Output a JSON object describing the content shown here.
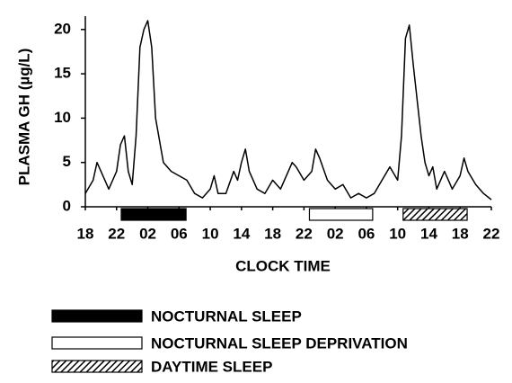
{
  "chart_data": {
    "type": "line",
    "y_label": "PLASMA GH (µg/L)",
    "x_label": "CLOCK TIME",
    "color": "#000000",
    "x": [
      0,
      1,
      1.5,
      2,
      3,
      4,
      4.5,
      5,
      5.5,
      6,
      6.5,
      7,
      7.5,
      8,
      8.5,
      9,
      10,
      11,
      12,
      13,
      14,
      15,
      16,
      16.5,
      17,
      18,
      19,
      19.5,
      20,
      20.5,
      21,
      22,
      23,
      24,
      25,
      26,
      26.5,
      27,
      28,
      29,
      29.5,
      30,
      31,
      32,
      33,
      34,
      35,
      36,
      37,
      38,
      39,
      40,
      40.5,
      41,
      41.5,
      42,
      43,
      43.5,
      44,
      44.5,
      45,
      46,
      46.5,
      47,
      48,
      48.5,
      49,
      50,
      51,
      52
    ],
    "values": [
      1.5,
      3,
      5,
      4,
      2,
      4,
      7,
      8,
      4,
      2.5,
      8,
      18,
      20,
      21,
      18,
      10,
      5,
      4,
      3.5,
      3,
      1.5,
      1,
      2,
      3.5,
      1.5,
      1.5,
      4,
      3,
      5,
      6.5,
      4,
      2,
      1.5,
      3,
      2,
      4,
      5,
      4.5,
      3,
      4,
      6.5,
      5.5,
      3,
      2,
      2.5,
      1,
      1.5,
      1,
      1.5,
      3,
      4.5,
      3,
      8,
      19,
      20.5,
      16,
      8,
      5,
      3.5,
      4.5,
      2,
      4,
      3,
      2,
      3.5,
      5.5,
      4,
      2.5,
      1.5,
      0.8
    ],
    "xlim": [
      0,
      52
    ],
    "xticks": [
      {
        "value": 0,
        "label": "18"
      },
      {
        "value": 4,
        "label": "22"
      },
      {
        "value": 8,
        "label": "02"
      },
      {
        "value": 12,
        "label": "06"
      },
      {
        "value": 16,
        "label": "10"
      },
      {
        "value": 20,
        "label": "14"
      },
      {
        "value": 24,
        "label": "18"
      },
      {
        "value": 28,
        "label": "22"
      },
      {
        "value": 32,
        "label": "02"
      },
      {
        "value": 36,
        "label": "06"
      },
      {
        "value": 40,
        "label": "10"
      },
      {
        "value": 44,
        "label": "14"
      },
      {
        "value": 48,
        "label": "18"
      },
      {
        "value": 52,
        "label": "22"
      }
    ],
    "ylim": [
      0,
      21.5
    ],
    "yticks": [
      0,
      5,
      10,
      15,
      20
    ],
    "sleep_periods": [
      {
        "name": "NOCTURNAL SLEEP",
        "style": "solid",
        "start": 4.6,
        "end": 12.9
      },
      {
        "name": "NOCTURNAL SLEEP DEPRIVATION",
        "style": "open",
        "start": 28.7,
        "end": 36.8
      },
      {
        "name": "DAYTIME SLEEP",
        "style": "hatched",
        "start": 40.7,
        "end": 48.9
      }
    ]
  }
}
